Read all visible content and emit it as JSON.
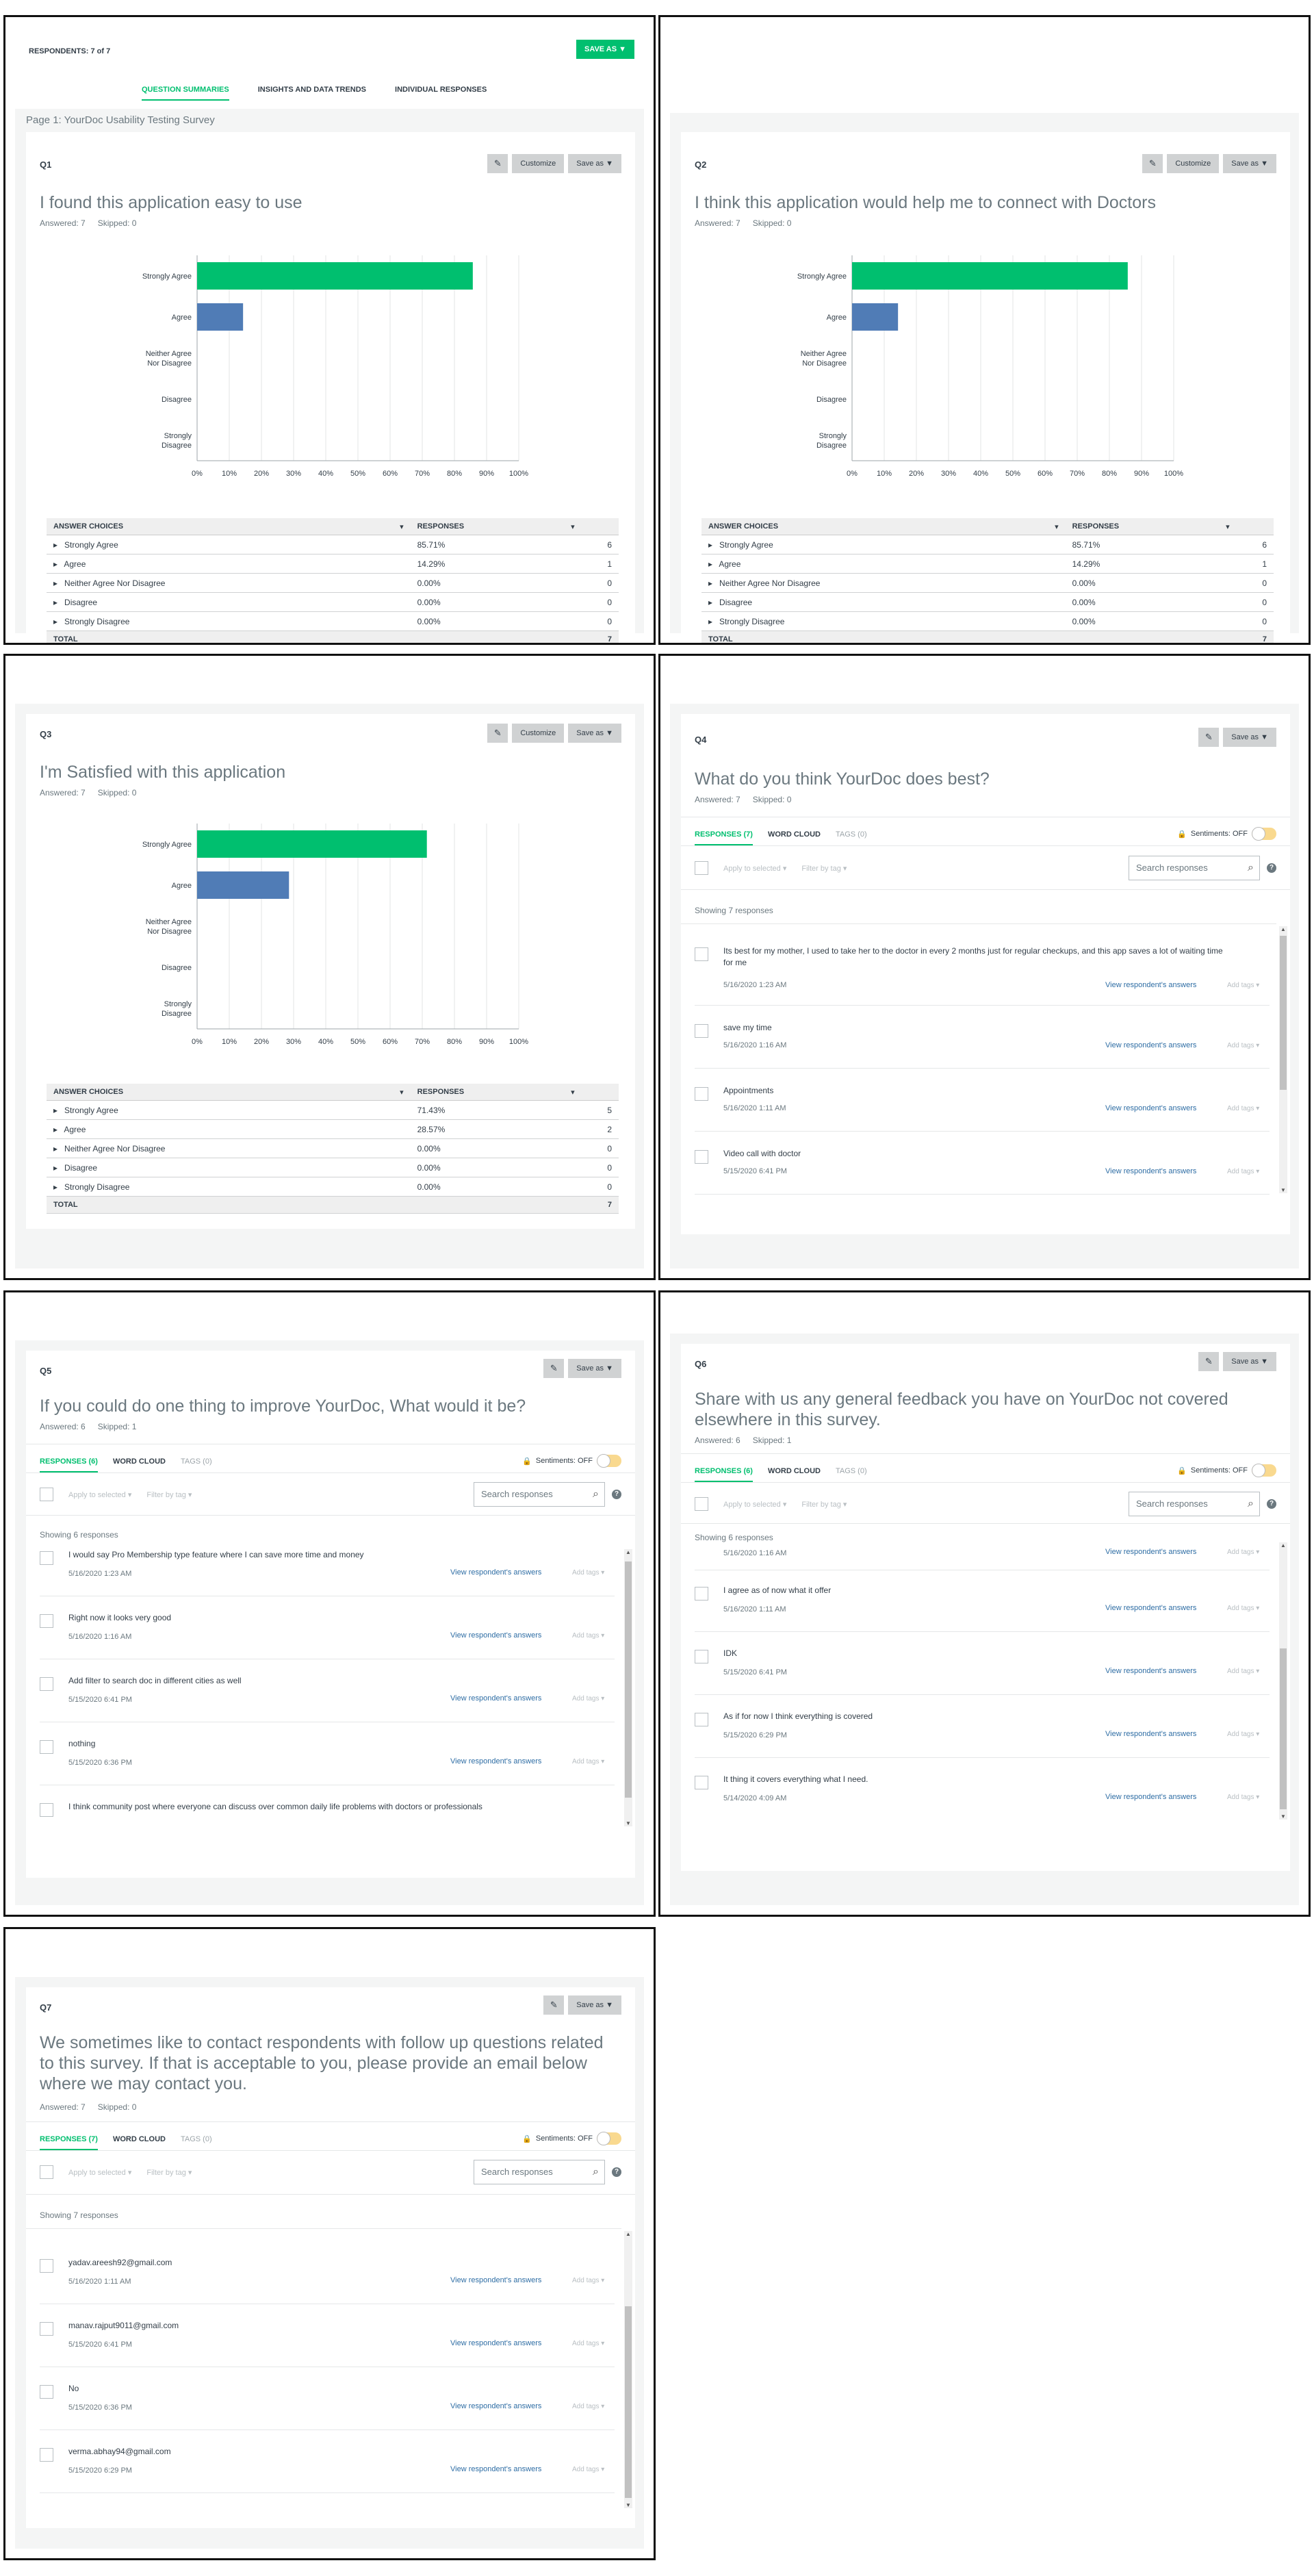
{
  "header": {
    "respondents": "RESPONDENTS: 7 of 7",
    "save_as": "SAVE AS",
    "tabs": [
      "QUESTION SUMMARIES",
      "INSIGHTS AND DATA TRENDS",
      "INDIVIDUAL RESPONSES"
    ],
    "page_label": "Page 1: YourDoc Usability Testing Survey"
  },
  "labels": {
    "customize": "Customize",
    "save_as": "Save as",
    "answer_choices": "ANSWER CHOICES",
    "responses": "RESPONSES",
    "total": "TOTAL",
    "tab_word_cloud": "WORD CLOUD",
    "tab_tags": "TAGS (0)",
    "sentiments": "Sentiments: OFF",
    "apply_to_selected": "Apply to selected",
    "filter_by_tag": "Filter by tag",
    "search_placeholder": "Search responses",
    "view_answers": "View respondent's answers",
    "add_tags": "Add tags"
  },
  "chart_ticks": [
    "0%",
    "10%",
    "20%",
    "30%",
    "40%",
    "50%",
    "60%",
    "70%",
    "80%",
    "90%",
    "100%"
  ],
  "colors": {
    "green": "#00bf6f",
    "blue": "#507cb6",
    "accent": "#00bf6f"
  },
  "q1": {
    "num": "Q1",
    "title": "I found this application easy to use",
    "answered": "Answered: 7",
    "skipped": "Skipped: 0",
    "chart_data": {
      "type": "bar",
      "orientation": "horizontal",
      "categories": [
        "Strongly Agree",
        "Agree",
        "Neither Agree Nor Disagree",
        "Disagree",
        "Strongly Disagree"
      ],
      "values": [
        85.71,
        14.29,
        0,
        0,
        0
      ],
      "xlim": [
        0,
        100
      ]
    },
    "rows": [
      {
        "choice": "Strongly Agree",
        "pct": "85.71%",
        "count": "6"
      },
      {
        "choice": "Agree",
        "pct": "14.29%",
        "count": "1"
      },
      {
        "choice": "Neither Agree Nor Disagree",
        "pct": "0.00%",
        "count": "0"
      },
      {
        "choice": "Disagree",
        "pct": "0.00%",
        "count": "0"
      },
      {
        "choice": "Strongly Disagree",
        "pct": "0.00%",
        "count": "0"
      }
    ],
    "total": "7"
  },
  "q2": {
    "num": "Q2",
    "title": "I think this application would help me to connect with Doctors",
    "answered": "Answered: 7",
    "skipped": "Skipped: 0",
    "chart_data": {
      "type": "bar",
      "orientation": "horizontal",
      "categories": [
        "Strongly Agree",
        "Agree",
        "Neither Agree Nor Disagree",
        "Disagree",
        "Strongly Disagree"
      ],
      "values": [
        85.71,
        14.29,
        0,
        0,
        0
      ],
      "xlim": [
        0,
        100
      ]
    },
    "rows": [
      {
        "choice": "Strongly Agree",
        "pct": "85.71%",
        "count": "6"
      },
      {
        "choice": "Agree",
        "pct": "14.29%",
        "count": "1"
      },
      {
        "choice": "Neither Agree Nor Disagree",
        "pct": "0.00%",
        "count": "0"
      },
      {
        "choice": "Disagree",
        "pct": "0.00%",
        "count": "0"
      },
      {
        "choice": "Strongly Disagree",
        "pct": "0.00%",
        "count": "0"
      }
    ],
    "total": "7"
  },
  "q3": {
    "num": "Q3",
    "title": "I'm Satisfied with this application",
    "answered": "Answered: 7",
    "skipped": "Skipped: 0",
    "chart_data": {
      "type": "bar",
      "orientation": "horizontal",
      "categories": [
        "Strongly Agree",
        "Agree",
        "Neither Agree Nor Disagree",
        "Disagree",
        "Strongly Disagree"
      ],
      "values": [
        71.43,
        28.57,
        0,
        0,
        0
      ],
      "xlim": [
        0,
        100
      ]
    },
    "rows": [
      {
        "choice": "Strongly Agree",
        "pct": "71.43%",
        "count": "5"
      },
      {
        "choice": "Agree",
        "pct": "28.57%",
        "count": "2"
      },
      {
        "choice": "Neither Agree Nor Disagree",
        "pct": "0.00%",
        "count": "0"
      },
      {
        "choice": "Disagree",
        "pct": "0.00%",
        "count": "0"
      },
      {
        "choice": "Strongly Disagree",
        "pct": "0.00%",
        "count": "0"
      }
    ],
    "total": "7"
  },
  "q4": {
    "num": "Q4",
    "title": "What do you think YourDoc does best?",
    "answered": "Answered: 7",
    "skipped": "Skipped: 0",
    "tab_responses": "RESPONSES (7)",
    "showing": "Showing 7 responses",
    "responses": [
      {
        "text": "Its best for my mother, I used to take her to the doctor in every 2 months just for regular checkups, and this app saves a lot of waiting time for me",
        "date": "5/16/2020 1:23 AM"
      },
      {
        "text": "save my time",
        "date": "5/16/2020 1:16 AM"
      },
      {
        "text": "Appointments",
        "date": "5/16/2020 1:11 AM"
      },
      {
        "text": "Video call with doctor",
        "date": "5/15/2020 6:41 PM"
      }
    ]
  },
  "q5": {
    "num": "Q5",
    "title": "If you could do one thing to improve YourDoc, What would it be?",
    "answered": "Answered: 6",
    "skipped": "Skipped: 1",
    "tab_responses": "RESPONSES (6)",
    "showing": "Showing 6 responses",
    "responses": [
      {
        "text": "I would say Pro Membership type feature where I can save more time and money",
        "date": "5/16/2020 1:23 AM"
      },
      {
        "text": "Right now it looks very good",
        "date": "5/16/2020 1:16 AM"
      },
      {
        "text": "Add filter to search doc in different cities as well",
        "date": "5/15/2020 6:41 PM"
      },
      {
        "text": "nothing",
        "date": "5/15/2020 6:36 PM"
      },
      {
        "text": "I think community post where everyone can discuss over common daily life problems with doctors or professionals",
        "date": ""
      }
    ]
  },
  "q6": {
    "num": "Q6",
    "title": "Share with us any general feedback you have on YourDoc not covered elsewhere in this survey.",
    "answered": "Answered: 6",
    "skipped": "Skipped: 1",
    "tab_responses": "RESPONSES (6)",
    "showing": "Showing 6 responses",
    "top_date": "5/16/2020 1:16 AM",
    "responses": [
      {
        "text": "I agree as of now what it offer",
        "date": "5/16/2020 1:11 AM"
      },
      {
        "text": "IDK",
        "date": "5/15/2020 6:41 PM"
      },
      {
        "text": "As if for now I think everything is covered",
        "date": "5/15/2020 6:29 PM"
      },
      {
        "text": "It thing it covers everything what I need.",
        "date": "5/14/2020 4:09 AM"
      }
    ]
  },
  "q7": {
    "num": "Q7",
    "title": "We sometimes like to contact respondents with follow up questions related to this survey. If that is acceptable to you, please provide an email below where we may contact you.",
    "answered": "Answered: 7",
    "skipped": "Skipped: 0",
    "tab_responses": "RESPONSES (7)",
    "showing": "Showing 7 responses",
    "responses": [
      {
        "text": "yadav.areesh92@gmail.com",
        "date": "5/16/2020 1:11 AM"
      },
      {
        "text": "manav.rajput9011@gmail.com",
        "date": "5/15/2020 6:41 PM"
      },
      {
        "text": "No",
        "date": "5/15/2020 6:36 PM"
      },
      {
        "text": "verma.abhay94@gmail.com",
        "date": "5/15/2020 6:29 PM"
      }
    ]
  }
}
